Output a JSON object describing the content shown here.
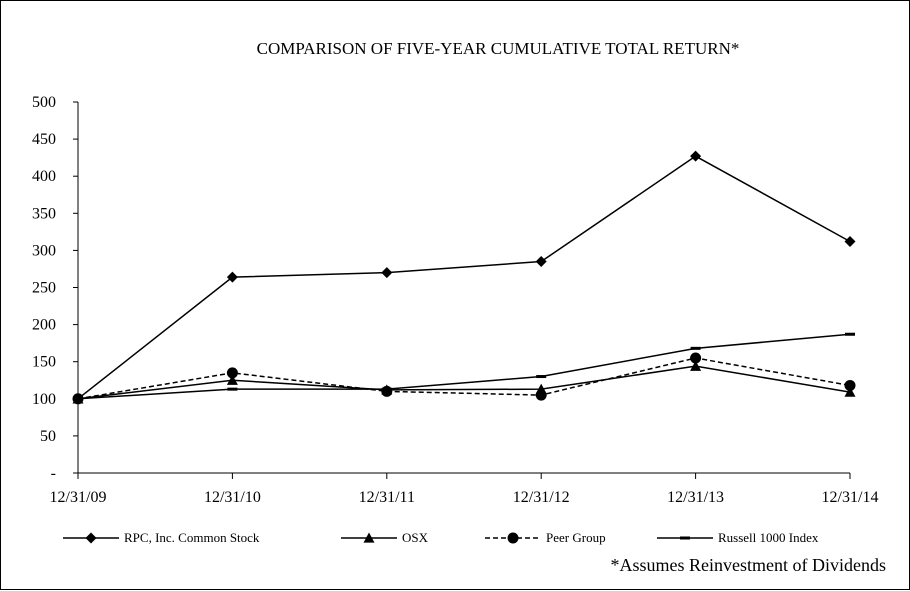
{
  "chart_data": {
    "type": "line",
    "title": "COMPARISON OF FIVE-YEAR CUMULATIVE TOTAL RETURN*",
    "footnote": "*Assumes Reinvestment of Dividends",
    "x": [
      "12/31/09",
      "12/31/10",
      "12/31/11",
      "12/31/12",
      "12/31/13",
      "12/31/14"
    ],
    "y_ticks": [
      "-",
      "50",
      "100",
      "150",
      "200",
      "250",
      "300",
      "350",
      "400",
      "450",
      "500"
    ],
    "ylim": [
      0,
      500
    ],
    "grid": false,
    "legend_position": "bottom",
    "series": [
      {
        "name": "RPC, Inc. Common Stock",
        "marker": "diamond",
        "dash": "solid",
        "color": "#000000",
        "values": [
          100,
          264,
          270,
          285,
          427,
          312
        ]
      },
      {
        "name": "OSX",
        "marker": "triangle",
        "dash": "solid",
        "color": "#000000",
        "values": [
          100,
          125,
          112,
          113,
          144,
          109
        ]
      },
      {
        "name": "Peer Group",
        "marker": "circle",
        "dash": "dashed",
        "color": "#000000",
        "values": [
          100,
          135,
          110,
          105,
          155,
          118
        ]
      },
      {
        "name": "Russell 1000 Index",
        "marker": "dash",
        "dash": "solid",
        "color": "#000000",
        "values": [
          100,
          113,
          113,
          130,
          168,
          187
        ]
      }
    ]
  }
}
